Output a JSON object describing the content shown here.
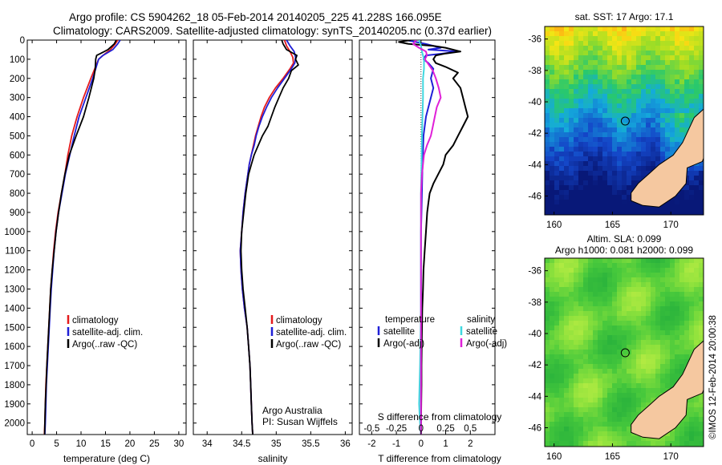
{
  "title": {
    "line1": "Argo profile: CS 5904262_18 05-Feb-2014 20140205_225 41.228S 166.095E",
    "line2": "Climatology: CARS2009. Satellite-adjusted climatology: synTS_20140205.nc (0.37d earlier)"
  },
  "colors": {
    "climatology": "#e41a1c",
    "satellite": "#1f1fd6",
    "argo": "#000000",
    "temp_sat_diff": "#2020d8",
    "temp_argo_diff": "#000000",
    "sal_sat_diff": "#3fd8e0",
    "sal_argo_diff": "#e020d8",
    "land": "#f5c8a0"
  },
  "depth_ticks": [
    0,
    100,
    200,
    300,
    400,
    500,
    600,
    700,
    800,
    900,
    1000,
    1100,
    1200,
    1300,
    1400,
    1500,
    1600,
    1700,
    1800,
    1900,
    2000
  ],
  "chart_data": [
    {
      "type": "line",
      "name": "temperature-profile",
      "xlabel": "temperature (deg C)",
      "xticks": [
        0,
        5,
        10,
        15,
        20,
        25,
        30
      ],
      "xlim": [
        -1,
        31.5
      ],
      "ylim": [
        0,
        2060
      ],
      "legend": [
        "climatology",
        "satellite-adj. clim.",
        "Argo(..raw -QC)"
      ],
      "series": [
        {
          "name": "climatology",
          "color_key": "climatology",
          "depth": [
            0,
            20,
            50,
            80,
            100,
            150,
            200,
            300,
            400,
            500,
            600,
            700,
            800,
            900,
            1000,
            1100,
            1200,
            1300,
            1400,
            1500,
            1600,
            1700,
            1800,
            1900,
            2000,
            2060
          ],
          "values": [
            17.5,
            17,
            16,
            14.5,
            13.6,
            12.8,
            12,
            10.5,
            9.2,
            8.1,
            7.3,
            6.7,
            6,
            5.3,
            4.8,
            4.4,
            4.1,
            3.8,
            3.6,
            3.4,
            3.2,
            3,
            2.8,
            2.7,
            2.6,
            2.5
          ]
        },
        {
          "name": "satellite-adj. clim.",
          "color_key": "satellite",
          "depth": [
            0,
            20,
            50,
            80,
            100,
            150,
            200,
            300,
            400,
            500,
            600,
            700,
            800,
            900,
            1000,
            1100,
            1200,
            1300,
            1400,
            1500,
            1600,
            1700,
            1800,
            1900,
            2000,
            2060
          ],
          "values": [
            18,
            17.5,
            16.5,
            14.5,
            13.6,
            13,
            12.4,
            11,
            9.6,
            8.6,
            7.7,
            6.8,
            6.1,
            5.4,
            4.9,
            4.5,
            4.2,
            3.9,
            3.7,
            3.5,
            3.3,
            3.1,
            2.9,
            2.8,
            2.7,
            2.6
          ]
        },
        {
          "name": "Argo(..raw -QC)",
          "color_key": "argo",
          "depth": [
            0,
            20,
            50,
            70,
            80,
            100,
            150,
            200,
            300,
            400,
            500,
            600,
            700,
            800,
            900,
            1000,
            1100,
            1200,
            1300,
            1400,
            1500,
            1600,
            1700,
            1800,
            1900,
            2000,
            2060
          ],
          "values": [
            17.2,
            16.8,
            15.5,
            14,
            13.2,
            13,
            12.9,
            12.6,
            11.6,
            10.5,
            9,
            7.6,
            6.7,
            6,
            5.4,
            4.9,
            4.5,
            4.1,
            3.8,
            3.6,
            3.4,
            3.2,
            3,
            2.85,
            2.7,
            2.6,
            2.55
          ]
        }
      ]
    },
    {
      "type": "line",
      "name": "salinity-profile",
      "xlabel": "salinity",
      "xticks": [
        34,
        34.5,
        35,
        35.5,
        36
      ],
      "xlim": [
        33.8,
        36.1
      ],
      "ylim": [
        0,
        2060
      ],
      "legend": [
        "climatology",
        "satellite-adj. clim.",
        "Argo(..raw -QC)"
      ],
      "annotation": [
        "Argo Australia",
        "PI: Susan Wijffels"
      ],
      "series": [
        {
          "name": "climatology",
          "color_key": "climatology",
          "depth": [
            0,
            30,
            60,
            90,
            120,
            150,
            200,
            250,
            300,
            350,
            400,
            450,
            500,
            550,
            600,
            650,
            700,
            800,
            900,
            1000,
            1100,
            1200,
            1300,
            1400,
            1500,
            1600,
            1700,
            1800,
            1900,
            2000,
            2060
          ],
          "values": [
            35.12,
            35.15,
            35.2,
            35.24,
            35.25,
            35.2,
            35.1,
            34.99,
            34.9,
            34.83,
            34.78,
            34.74,
            34.7,
            34.67,
            34.64,
            34.61,
            34.59,
            34.55,
            34.52,
            34.5,
            34.48,
            34.49,
            34.51,
            34.54,
            34.58,
            34.6,
            34.62,
            34.63,
            34.64,
            34.65,
            34.66
          ]
        },
        {
          "name": "satellite-adj. clim.",
          "color_key": "satellite",
          "depth": [
            0,
            30,
            60,
            90,
            120,
            150,
            200,
            250,
            300,
            350,
            400,
            450,
            500,
            550,
            600,
            650,
            700,
            800,
            900,
            1000,
            1100,
            1200,
            1300,
            1400,
            1500,
            1600,
            1700,
            1800,
            1900,
            2000,
            2060
          ],
          "values": [
            35.15,
            35.2,
            35.26,
            35.28,
            35.27,
            35.22,
            35.12,
            35.02,
            34.93,
            34.86,
            34.8,
            34.75,
            34.71,
            34.68,
            34.64,
            34.61,
            34.59,
            34.55,
            34.52,
            34.5,
            34.48,
            34.49,
            34.51,
            34.54,
            34.58,
            34.6,
            34.62,
            34.63,
            34.64,
            34.65,
            34.66
          ]
        },
        {
          "name": "Argo(..raw -QC)",
          "color_key": "argo",
          "depth": [
            0,
            20,
            50,
            80,
            100,
            130,
            160,
            200,
            250,
            300,
            350,
            400,
            450,
            500,
            550,
            600,
            650,
            700,
            800,
            900,
            1000,
            1100,
            1200,
            1300,
            1400,
            1500,
            1600,
            1700,
            1800,
            1900,
            2000,
            2060
          ],
          "values": [
            35.08,
            35.1,
            35.15,
            35.3,
            35.28,
            35.32,
            35.22,
            35.18,
            35.1,
            35.04,
            34.98,
            34.93,
            34.88,
            34.8,
            34.74,
            34.68,
            34.64,
            34.6,
            34.56,
            34.53,
            34.5,
            34.49,
            34.5,
            34.52,
            34.55,
            34.58,
            34.6,
            34.62,
            34.63,
            34.64,
            34.65,
            34.66
          ]
        }
      ]
    },
    {
      "type": "line",
      "name": "difference-profile",
      "xlabel": "T difference from climatology",
      "xlabel_top": "S difference from climatology",
      "xticks": [
        -2,
        -1,
        0,
        1,
        2
      ],
      "xticks_top": [
        "-0.5",
        "-0.25",
        "0",
        "0.25",
        "0.5"
      ],
      "xlim": [
        -2.5,
        3
      ],
      "ylim": [
        0,
        2060
      ],
      "legend_temp_title": "temperature",
      "legend_sal_title": "salinity",
      "legend_temp": [
        "satellite",
        "Argo(-adj)"
      ],
      "legend_sal": [
        "satellite",
        "Argo(-adj)"
      ],
      "series": [
        {
          "name": "T satellite",
          "color_key": "temp_sat_diff",
          "depth": [
            0,
            20,
            40,
            50,
            60,
            70,
            80,
            100,
            120,
            150,
            200,
            250,
            300,
            400,
            500,
            700,
            900,
            1000,
            1200,
            1500,
            1800,
            2000,
            2060
          ],
          "values": [
            -0.6,
            0.2,
            0.8,
            0.3,
            1.5,
            0.9,
            0.2,
            0.1,
            0.3,
            0.5,
            0.4,
            0.5,
            0.4,
            0.2,
            0.1,
            0.05,
            0.02,
            0.0,
            0.0,
            0.0,
            0.0,
            0.0,
            0.0
          ]
        },
        {
          "name": "T Argo(-adj)",
          "color_key": "temp_argo_diff",
          "depth": [
            0,
            10,
            20,
            30,
            40,
            60,
            70,
            80,
            100,
            120,
            140,
            170,
            200,
            250,
            300,
            350,
            400,
            450,
            500,
            550,
            600,
            650,
            700,
            750,
            800,
            850,
            900,
            1000,
            1100,
            1200,
            1300,
            1400,
            1500,
            1600,
            1700,
            1800,
            1900,
            2000,
            2060
          ],
          "values": [
            -0.4,
            -0.9,
            -0.5,
            0.5,
            1.0,
            1.6,
            1.0,
            0.6,
            0.5,
            0.6,
            1.0,
            1.5,
            1.3,
            1.6,
            1.7,
            1.8,
            1.9,
            1.7,
            1.5,
            1.3,
            1.0,
            0.9,
            0.7,
            0.5,
            0.35,
            0.3,
            0.25,
            0.2,
            0.15,
            0.1,
            0.08,
            0.05,
            0.04,
            0.03,
            0.02,
            0.02,
            0.01,
            0.0,
            0.0
          ]
        },
        {
          "name": "S satellite",
          "color_key": "sal_sat_diff",
          "depth": [
            0,
            30,
            60,
            100,
            150,
            200,
            300,
            500,
            800,
            1100,
            1400,
            1700,
            1900,
            2000,
            2060
          ],
          "values": [
            -0.02,
            0.0,
            0.01,
            0.03,
            0.03,
            0.02,
            0.02,
            0.01,
            0.0,
            0.0,
            0.0,
            -0.01,
            -0.02,
            -0.01,
            0.0
          ]
        },
        {
          "name": "S Argo(-adj)",
          "color_key": "sal_argo_diff",
          "depth": [
            0,
            20,
            40,
            60,
            80,
            100,
            130,
            160,
            200,
            250,
            300,
            350,
            400,
            450,
            500,
            550,
            600,
            700,
            800,
            900,
            1000,
            1200,
            1500,
            1800,
            2000,
            2060
          ],
          "values": [
            -0.05,
            -0.08,
            -0.02,
            0.05,
            0.06,
            0.04,
            0.08,
            0.12,
            0.15,
            0.18,
            0.2,
            0.16,
            0.14,
            0.12,
            0.1,
            0.06,
            0.03,
            0.01,
            0.0,
            0.0,
            0.0,
            0.0,
            0.0,
            0.0,
            0.0,
            0.0
          ]
        }
      ]
    },
    {
      "type": "heatmap",
      "name": "sst-map",
      "title": "sat. SST: 17 Argo: 17.1",
      "xticks": [
        160,
        165,
        170
      ],
      "yticks": [
        -36,
        -38,
        -40,
        -42,
        -44,
        -46
      ],
      "xlim": [
        159.2,
        172.8
      ],
      "ylim": [
        -47.2,
        -35.2
      ],
      "argo_position": {
        "lon": 166.095,
        "lat": -41.228
      }
    },
    {
      "type": "heatmap",
      "name": "sla-map",
      "title_line1": "Altim. SLA: 0.099",
      "title_line2": "Argo h1000: 0.081 h2000: 0.099",
      "xticks": [
        160,
        165,
        170
      ],
      "yticks": [
        -36,
        -38,
        -40,
        -42,
        -44,
        -46
      ],
      "xlim": [
        159.2,
        172.8
      ],
      "ylim": [
        -47.2,
        -35.2
      ],
      "argo_position": {
        "lon": 166.095,
        "lat": -41.228
      }
    }
  ],
  "stamp": "©IMOS 12-Feb-2014 20:00:38"
}
